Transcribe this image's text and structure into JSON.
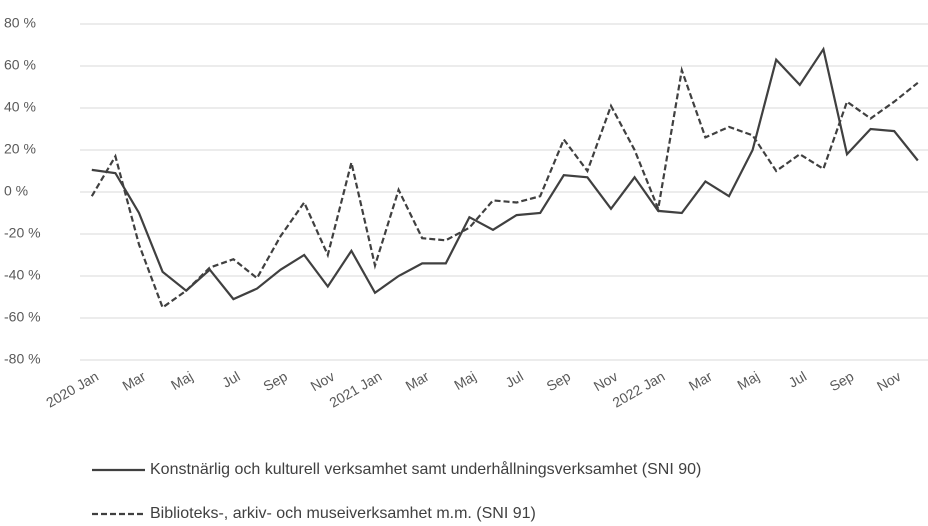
{
  "chart_data": {
    "type": "line",
    "categories": [
      "2020 Jan",
      null,
      "Mar",
      null,
      "Maj",
      null,
      "Jul",
      null,
      "Sep",
      null,
      "Nov",
      null,
      "2021 Jan",
      null,
      "Mar",
      null,
      "Maj",
      null,
      "Jul",
      null,
      "Sep",
      null,
      "Nov",
      null,
      "2022 Jan",
      null,
      "Mar",
      null,
      "Maj",
      null,
      "Jul",
      null,
      "Sep",
      null,
      "Nov",
      null
    ],
    "series": [
      {
        "name": "Konstnärlig och kulturell verksamhet samt underhållningsverksamhet (SNI 90)",
        "color": "#404040",
        "line_style": "solid",
        "values": [
          10.5,
          9,
          -10,
          -38,
          -47,
          -37,
          -51,
          -46,
          -37,
          -30,
          -45,
          -28,
          -48,
          -40,
          -34,
          -34,
          -12,
          -18,
          -11,
          -10,
          8,
          7,
          -8,
          7,
          -9,
          -10,
          5,
          -2,
          20,
          63,
          51,
          68,
          18,
          30,
          29,
          15
        ]
      },
      {
        "name": "Biblioteks-, arkiv- och museiverksamhet m.m. (SNI 91)",
        "color": "#404040",
        "line_style": "dashed",
        "values": [
          -2,
          17,
          -25,
          -55,
          -47,
          -36,
          -32,
          -41,
          -21,
          -5,
          -30,
          14,
          -35,
          1,
          -22,
          -23,
          -17,
          -4,
          -5,
          -2,
          25,
          10,
          41,
          20,
          -8,
          58,
          26,
          31,
          27,
          10,
          18,
          11,
          43,
          35,
          43,
          52
        ]
      }
    ],
    "ylim": [
      -80,
      80
    ],
    "yticks": [
      {
        "value": -80,
        "label": "-80 %"
      },
      {
        "value": -60,
        "label": "-60 %"
      },
      {
        "value": -40,
        "label": "-40 %"
      },
      {
        "value": -20,
        "label": "-20 %"
      },
      {
        "value": 0,
        "label": "0 %"
      },
      {
        "value": 20,
        "label": "20 %"
      },
      {
        "value": 40,
        "label": "40 %"
      },
      {
        "value": 60,
        "label": "60 %"
      },
      {
        "value": 80,
        "label": "80 %"
      }
    ],
    "grid": true,
    "legend": "bottom"
  }
}
